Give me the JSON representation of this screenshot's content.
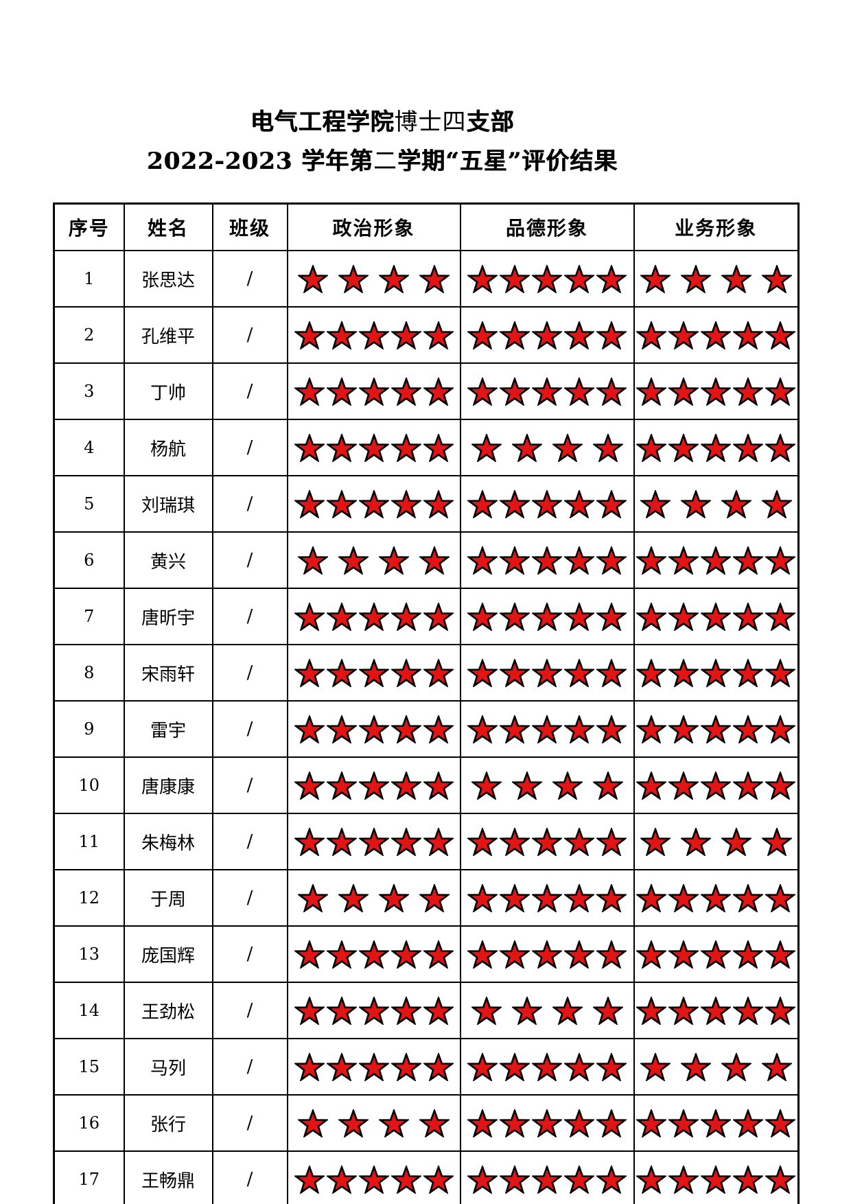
{
  "page": {
    "title_line1": {
      "p1": "电气工程学院",
      "p2": "博士四",
      "p3": "支部"
    },
    "title_line2": {
      "p1": "2022-2023 学年第",
      "p2": "二",
      "p3": "学期“五星”评价结果"
    }
  },
  "table": {
    "headers": [
      "序号",
      "姓名",
      "班级",
      "政治形象",
      "品德形象",
      "业务形象"
    ],
    "rows": [
      {
        "no": "1",
        "name": "张思达",
        "cls": "/",
        "political": 4,
        "moral": 5,
        "business": 4
      },
      {
        "no": "2",
        "name": "孔维平",
        "cls": "/",
        "political": 5,
        "moral": 5,
        "business": 5
      },
      {
        "no": "3",
        "name": "丁帅",
        "cls": "/",
        "political": 5,
        "moral": 5,
        "business": 5
      },
      {
        "no": "4",
        "name": "杨航",
        "cls": "/",
        "political": 5,
        "moral": 4,
        "business": 5
      },
      {
        "no": "5",
        "name": "刘瑞琪",
        "cls": "/",
        "political": 5,
        "moral": 5,
        "business": 4
      },
      {
        "no": "6",
        "name": "黄兴",
        "cls": "/",
        "political": 4,
        "moral": 5,
        "business": 5
      },
      {
        "no": "7",
        "name": "唐昕宇",
        "cls": "/",
        "political": 5,
        "moral": 5,
        "business": 5
      },
      {
        "no": "8",
        "name": "宋雨轩",
        "cls": "/",
        "political": 5,
        "moral": 5,
        "business": 5
      },
      {
        "no": "9",
        "name": "雷宇",
        "cls": "/",
        "political": 5,
        "moral": 5,
        "business": 5
      },
      {
        "no": "10",
        "name": "唐康康",
        "cls": "/",
        "political": 5,
        "moral": 4,
        "business": 5
      },
      {
        "no": "11",
        "name": "朱梅林",
        "cls": "/",
        "political": 5,
        "moral": 5,
        "business": 4
      },
      {
        "no": "12",
        "name": "于周",
        "cls": "/",
        "political": 4,
        "moral": 5,
        "business": 5
      },
      {
        "no": "13",
        "name": "庞国辉",
        "cls": "/",
        "political": 5,
        "moral": 5,
        "business": 5
      },
      {
        "no": "14",
        "name": "王劲松",
        "cls": "/",
        "political": 5,
        "moral": 4,
        "business": 5
      },
      {
        "no": "15",
        "name": "马列",
        "cls": "/",
        "political": 5,
        "moral": 5,
        "business": 4
      },
      {
        "no": "16",
        "name": "张行",
        "cls": "/",
        "political": 4,
        "moral": 5,
        "business": 5
      },
      {
        "no": "17",
        "name": "王畅鼎",
        "cls": "/",
        "political": 5,
        "moral": 5,
        "business": 5
      }
    ]
  },
  "styles": {
    "star_fill": "#e21414",
    "star_stroke": "#000000",
    "border_color": "#000000",
    "background": "#ffffff"
  }
}
